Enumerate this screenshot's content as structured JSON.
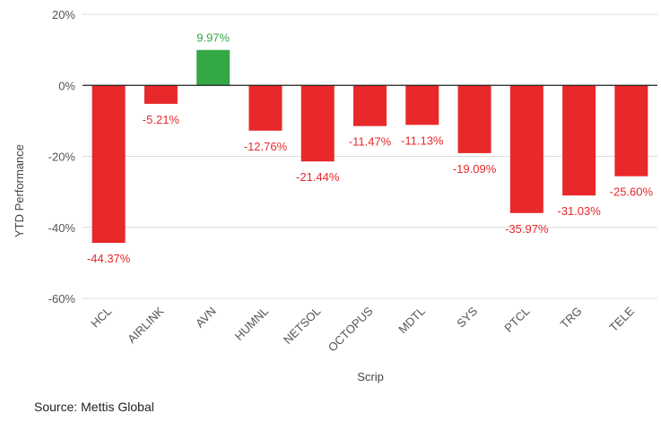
{
  "chart_data": {
    "type": "bar",
    "categories": [
      "HCL",
      "AIRLINK",
      "AVN",
      "HUMNL",
      "NETSOL",
      "OCTOPUS",
      "MDTL",
      "SYS",
      "PTCL",
      "TRG",
      "TELE"
    ],
    "values": [
      -44.37,
      -5.21,
      9.97,
      -12.76,
      -21.44,
      -11.47,
      -11.13,
      -19.09,
      -35.97,
      -31.03,
      -25.6
    ],
    "data_labels": [
      "-44.37%",
      "-5.21%",
      "9.97%",
      "-12.76%",
      "-21.44%",
      "-11.47%",
      "-11.13%",
      "-19.09%",
      "-35.97%",
      "-31.03%",
      "-25.60%"
    ],
    "title": "",
    "xlabel": "Scrip",
    "ylabel": "YTD Performance",
    "ylim": [
      -60,
      20
    ],
    "yticks": [
      20,
      0,
      -20,
      -40,
      -60
    ],
    "ytick_labels": [
      "20%",
      "0%",
      "-20%",
      "-40%",
      "-60%"
    ],
    "grid": true,
    "colors": {
      "positive": "#33a845",
      "negative": "#e8282a",
      "positive_label": "#33a845",
      "negative_label": "#e8282a",
      "grid": "#dcdcdc",
      "axis_text": "#555555",
      "zero_line": "#222222"
    }
  },
  "source": "Source: Mettis Global"
}
